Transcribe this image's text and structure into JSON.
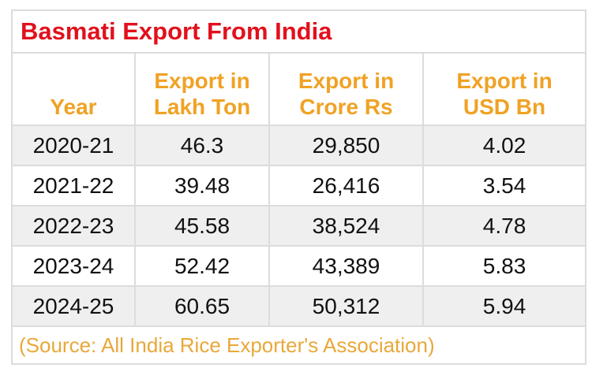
{
  "title": "Basmati Export From India",
  "headers": [
    "Year",
    "Export in\nLakh Ton",
    "Export in\nCrore Rs",
    "Export in\nUSD Bn"
  ],
  "header_lines": [
    [
      "Year"
    ],
    [
      "Export in",
      "Lakh Ton"
    ],
    [
      "Export in",
      "Crore Rs"
    ],
    [
      "Export in",
      "USD Bn"
    ]
  ],
  "rows": [
    [
      "2020-21",
      "46.3",
      "29,850",
      "4.02"
    ],
    [
      "2021-22",
      "39.48",
      "26,416",
      "3.54"
    ],
    [
      "2022-23",
      "45.58",
      "38,524",
      "4.78"
    ],
    [
      "2023-24",
      "52.42",
      "43,389",
      "5.83"
    ],
    [
      "2024-25",
      "60.65",
      "50,312",
      "5.94"
    ]
  ],
  "source": "(Source: All India Rice Exporter's Association)",
  "colors": {
    "title": "#e2101c",
    "header": "#f0a224",
    "source": "#e9a83a",
    "alt_row": "#efefef"
  }
}
